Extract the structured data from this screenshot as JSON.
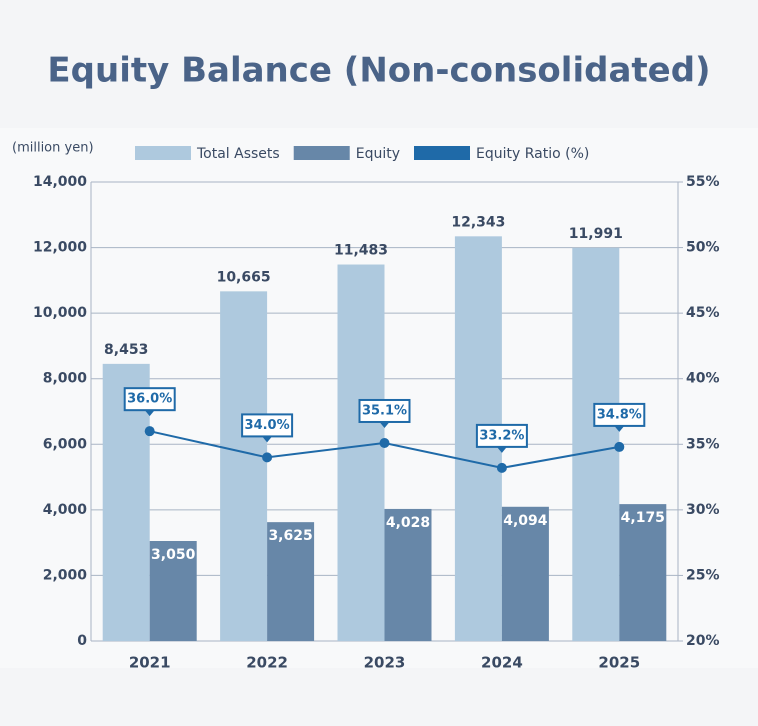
{
  "chart_data": {
    "type": "bar",
    "title": "Equity Balance (Non-consolidated)",
    "y_axis_label": "(million yen)",
    "categories": [
      "2021",
      "2022",
      "2023",
      "2024",
      "2025"
    ],
    "series": [
      {
        "name": "Total Assets",
        "color": "#aec9de",
        "values": [
          8453,
          10665,
          11483,
          12343,
          11991
        ],
        "value_labels": [
          "8,453",
          "10,665",
          "11,483",
          "12,343",
          "11,991"
        ]
      },
      {
        "name": "Equity",
        "color": "#6787a8",
        "values": [
          3050,
          3625,
          4028,
          4094,
          4175
        ],
        "value_labels": [
          "3,050",
          "3,625",
          "4,028",
          "4,094",
          "4,175"
        ]
      },
      {
        "name": "Equity Ratio (%)",
        "color": "#1f6aa8",
        "type": "line",
        "axis": "y2",
        "values": [
          36.0,
          34.0,
          35.1,
          33.2,
          34.8
        ],
        "value_labels": [
          "36.0%",
          "34.0%",
          "35.1%",
          "33.2%",
          "34.8%"
        ]
      }
    ],
    "ylim": [
      0,
      14000
    ],
    "yticks": [
      0,
      {
        "value": 2000,
        "label": "2,000"
      },
      {
        "value": 4000,
        "label": "4,000"
      },
      {
        "value": 6000,
        "label": "6,000"
      },
      {
        "value": 8000,
        "label": "8,000"
      },
      {
        "value": 10000,
        "label": "10,000"
      },
      {
        "value": 12000,
        "label": "12,000"
      },
      {
        "value": 14000,
        "label": "14,000"
      }
    ],
    "y2lim": [
      20,
      55
    ],
    "y2ticks": [
      {
        "value": 20,
        "label": "20%"
      },
      {
        "value": 25,
        "label": "25%"
      },
      {
        "value": 30,
        "label": "30%"
      },
      {
        "value": 35,
        "label": "35%"
      },
      {
        "value": 40,
        "label": "40%"
      },
      {
        "value": 45,
        "label": "45%"
      },
      {
        "value": 50,
        "label": "50%"
      },
      {
        "value": 55,
        "label": "55%"
      }
    ],
    "grid": true,
    "legend": "top"
  }
}
